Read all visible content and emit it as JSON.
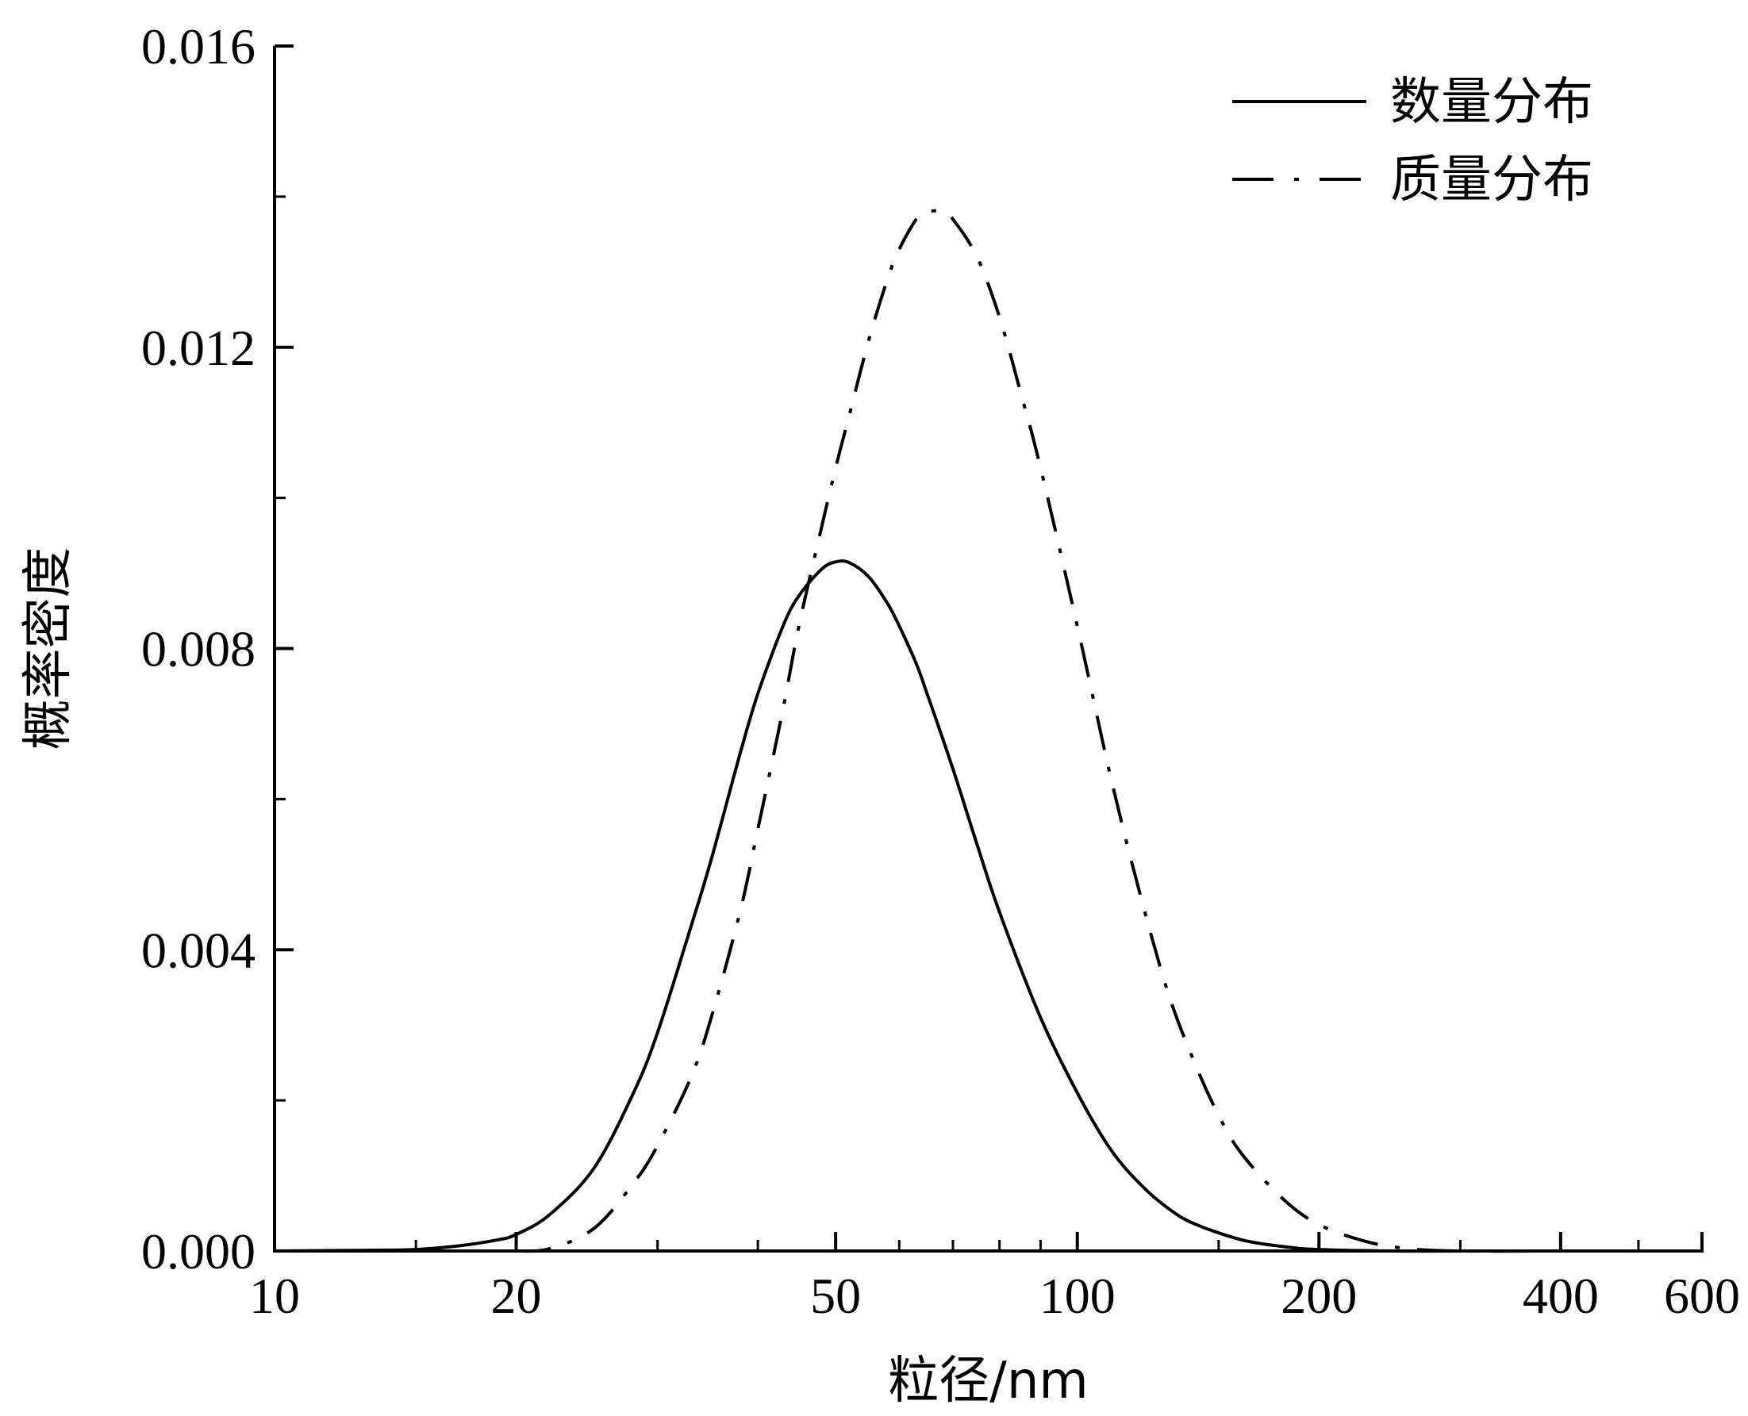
{
  "chart_data": {
    "type": "line",
    "title": "",
    "xlabel": "粒径/nm",
    "ylabel": "概率密度",
    "x_scale": "log",
    "xlim": [
      10,
      600
    ],
    "ylim": [
      0,
      0.016
    ],
    "x_ticks": [
      10,
      20,
      50,
      100,
      200,
      400,
      600
    ],
    "x_minor_ticks": [
      15,
      30,
      40,
      60,
      70,
      80,
      90,
      150,
      300,
      500
    ],
    "y_ticks": [
      "0.000",
      "0.004",
      "0.008",
      "0.012",
      "0.016"
    ],
    "y_tick_values": [
      0,
      0.004,
      0.008,
      0.012,
      0.016
    ],
    "y_minor_ticks": [
      0.002,
      0.006,
      0.01,
      0.014
    ],
    "grid": false,
    "legend_position": "top-right",
    "series": [
      {
        "name": "数量分布",
        "line_style": "solid",
        "color": "#000000",
        "x": [
          10,
          13,
          15,
          17,
          19,
          20,
          22,
          25,
          28,
          30,
          33,
          35,
          38,
          40,
          43,
          45,
          48,
          50,
          52,
          55,
          58,
          60,
          63,
          65,
          70,
          75,
          80,
          90,
          100,
          110,
          120,
          130,
          140,
          160,
          180,
          200,
          250,
          300,
          400,
          600
        ],
        "y": [
          0.0,
          1e-05,
          2e-05,
          7e-05,
          0.00015,
          0.00022,
          0.00048,
          0.0011,
          0.0021,
          0.0029,
          0.0043,
          0.0052,
          0.0066,
          0.0074,
          0.0083,
          0.0087,
          0.00905,
          0.00915,
          0.00914,
          0.00895,
          0.0086,
          0.0083,
          0.0078,
          0.0074,
          0.0064,
          0.0054,
          0.0045,
          0.0031,
          0.0021,
          0.00135,
          0.00088,
          0.00056,
          0.00036,
          0.00015,
          6e-05,
          2e-05,
          0.0,
          0.0,
          0.0,
          0.0
        ]
      },
      {
        "name": "质量分布",
        "line_style": "dash-dot",
        "color": "#000000",
        "x": [
          20,
          22,
          25,
          28,
          30,
          33,
          35,
          38,
          40,
          43,
          45,
          48,
          50,
          52,
          55,
          58,
          60,
          63,
          65,
          68,
          70,
          75,
          80,
          85,
          90,
          100,
          110,
          120,
          130,
          140,
          150,
          160,
          180,
          200,
          230,
          260,
          300,
          400,
          600
        ],
        "y": [
          0.0,
          3e-05,
          0.0003,
          0.0009,
          0.0014,
          0.0023,
          0.0031,
          0.0045,
          0.0056,
          0.0072,
          0.0083,
          0.0096,
          0.0104,
          0.0111,
          0.0121,
          0.0129,
          0.0133,
          0.0137,
          0.0138,
          0.0138,
          0.0137,
          0.0132,
          0.0124,
          0.0114,
          0.0104,
          0.0083,
          0.0063,
          0.0047,
          0.0034,
          0.0025,
          0.0018,
          0.0013,
          0.0007,
          0.00035,
          0.00012,
          3e-05,
          0.0,
          0.0,
          0.0
        ]
      }
    ]
  }
}
